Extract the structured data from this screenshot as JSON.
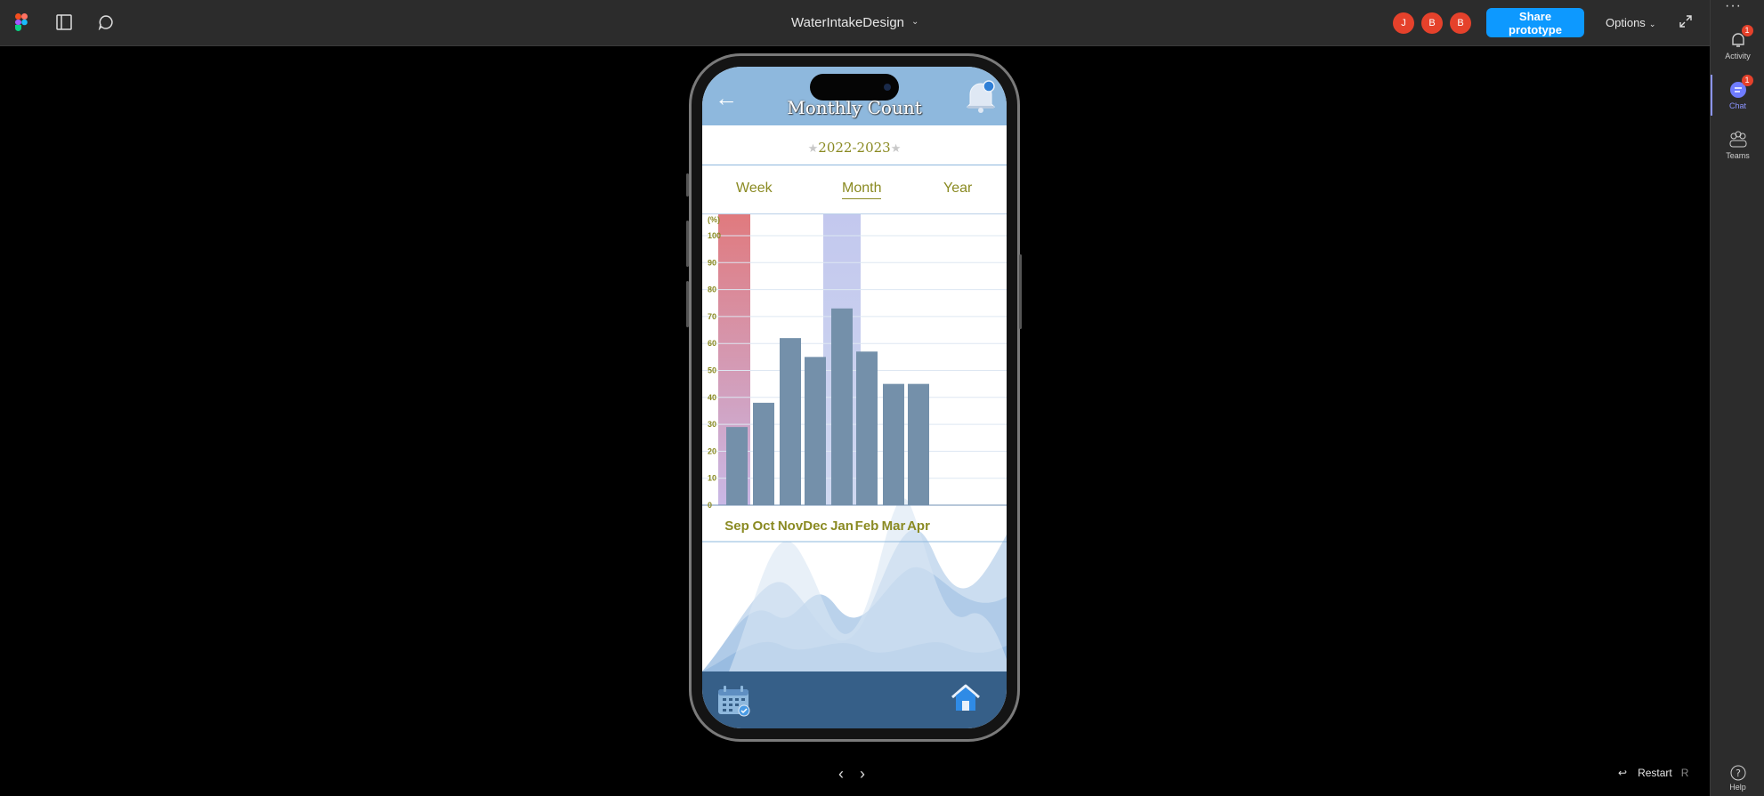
{
  "toolbar": {
    "document_title": "WaterIntakeDesign",
    "avatars": [
      "J",
      "B",
      "B"
    ],
    "share_label": "Share prototype",
    "options_label": "Options"
  },
  "rail": {
    "items": [
      {
        "label": "Activity",
        "badge": "1"
      },
      {
        "label": "Chat",
        "badge": "1"
      },
      {
        "label": "Teams"
      },
      {
        "label": "Help"
      }
    ]
  },
  "footer": {
    "restart_label": "Restart",
    "restart_key": "R"
  },
  "app": {
    "title": "Monthly Count",
    "year_range": "2022-2023",
    "tabs": [
      "Week",
      "Month",
      "Year"
    ],
    "active_tab": "Month"
  },
  "colors": {
    "header": "#8eb8dd",
    "bar": "#7490aa",
    "label": "#8a8a22",
    "nav": "#365f88",
    "highlight_red": "#e07a7e",
    "highlight_blue": "#c3c8ee",
    "brand_blue": "#0d99ff"
  },
  "chart_data": {
    "type": "bar",
    "ylabel": "(%)",
    "ylim": [
      0,
      100
    ],
    "yticks": [
      0,
      10,
      20,
      30,
      40,
      50,
      60,
      70,
      80,
      90,
      100
    ],
    "categories": [
      "Sep",
      "Oct",
      "Nov",
      "Dec",
      "Jan",
      "Feb",
      "Mar",
      "Apr"
    ],
    "values": [
      29,
      38,
      62,
      55,
      73,
      57,
      45,
      45
    ],
    "highlighted": {
      "Sep": "red",
      "Jan": "blue"
    }
  }
}
